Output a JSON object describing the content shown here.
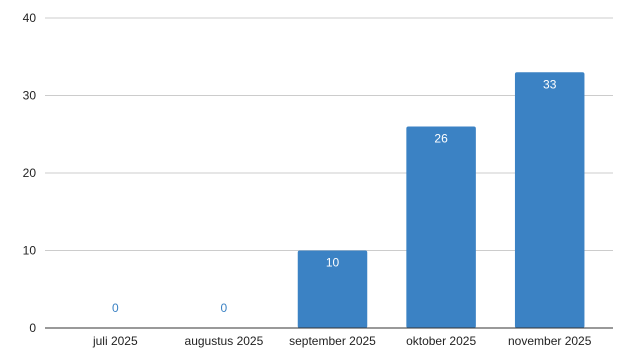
{
  "chart_data": {
    "type": "bar",
    "title": "",
    "xlabel": "",
    "ylabel": "",
    "categories": [
      "juli 2025",
      "augustus 2025",
      "september 2025",
      "oktober 2025",
      "november 2025"
    ],
    "values": [
      0,
      0,
      10,
      26,
      33
    ],
    "data_labels": [
      "0",
      "0",
      "10",
      "26",
      "33"
    ],
    "y_ticks": [
      0,
      10,
      20,
      30,
      40
    ],
    "y_tick_labels": [
      "0",
      "10",
      "20",
      "30",
      "40"
    ],
    "ylim": [
      0,
      40
    ],
    "grid": true,
    "legend": "none",
    "colors": {
      "bar": "#3b82c4",
      "label_inside": "#ffffff",
      "label_outside": "#3b82c4",
      "grid": "#cccccc",
      "axis": "#333333"
    }
  }
}
